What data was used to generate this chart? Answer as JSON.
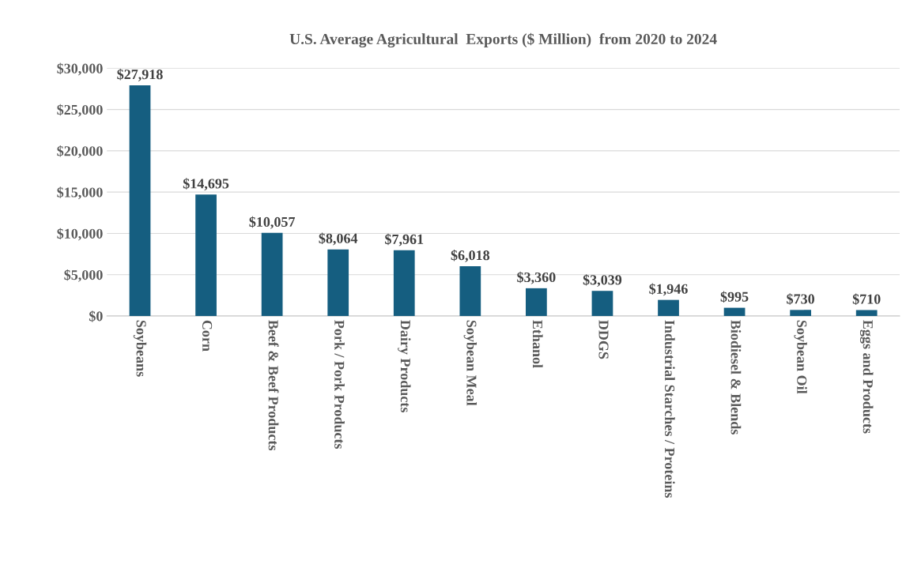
{
  "chart_data": {
    "type": "bar",
    "title": "U.S. Average Agricultural  Exports ($ Million)  from 2020 to 2024",
    "categories": [
      "Soybeans",
      "Corn",
      "Beef & Beef Products",
      "Pork / Pork Products",
      "Dairy Products",
      "Soybean Meal",
      "Ethanol",
      "DDGS",
      "Industrial Starches / Proteins",
      "Biodiesel & Blends",
      "Soybean Oil",
      "Eggs and Products"
    ],
    "values": [
      27918,
      14695,
      10057,
      8064,
      7961,
      6018,
      3360,
      3039,
      1946,
      995,
      730,
      710
    ],
    "value_labels": [
      "$27,918",
      "$14,695",
      "$10,057",
      "$8,064",
      "$7,961",
      "$6,018",
      "$3,360",
      "$3,039",
      "$1,946",
      "$995",
      "$730",
      "$710"
    ],
    "color": "#155e80",
    "ylim": [
      0,
      30000
    ],
    "yticks": [
      {
        "value": 0,
        "label": "$0"
      },
      {
        "value": 5000,
        "label": "$5,000"
      },
      {
        "value": 10000,
        "label": "$10,000"
      },
      {
        "value": 15000,
        "label": "$15,000"
      },
      {
        "value": 20000,
        "label": "$20,000"
      },
      {
        "value": 25000,
        "label": "$25,000"
      },
      {
        "value": 30000,
        "label": "$30,000"
      }
    ],
    "grid": "y",
    "legend": false
  }
}
